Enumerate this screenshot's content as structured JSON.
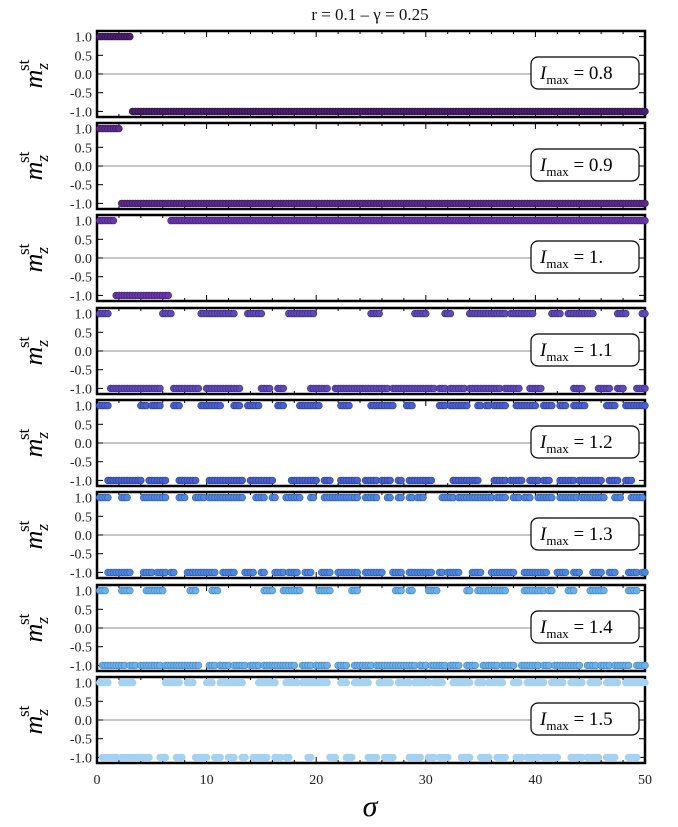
{
  "figure": {
    "title": "r = 0.1  –  γ = 0.25",
    "xlabel": "σ",
    "ylabel": "m_z^st"
  },
  "chart_data": {
    "type": "scatter",
    "title": "r = 0.1  –  γ = 0.25",
    "xlabel": "σ",
    "ylabel": "m_z^st",
    "xlim": [
      0,
      50
    ],
    "ylim": [
      -1.15,
      1.15
    ],
    "xticks": [
      "0",
      "10",
      "20",
      "30",
      "40",
      "50"
    ],
    "yticks": [
      "1.0",
      "0.5",
      "0.0",
      "-0.5",
      "-1.0"
    ],
    "legend_placement": "right",
    "grid": false,
    "x_step": 0.25,
    "panels": [
      {
        "label": "I_max = 0.8",
        "label_base": "I",
        "label_sub": "max",
        "label_value": " = 0.8",
        "color": "#4a1f6e",
        "stroke": "#2d1045",
        "segments_plus": [
          [
            0.25,
            3.0
          ]
        ],
        "segments_minus": [
          [
            3.25,
            50.0
          ]
        ]
      },
      {
        "label": "I_max = 0.9",
        "label_base": "I",
        "label_sub": "max",
        "label_value": " = 0.9",
        "color": "#5b2a8a",
        "stroke": "#3a1860",
        "segments_plus": [
          [
            0.25,
            2.0
          ]
        ],
        "segments_minus": [
          [
            2.25,
            50.0
          ]
        ]
      },
      {
        "label": "I_max = 1.",
        "label_base": "I",
        "label_sub": "max",
        "label_value": " = 1.",
        "color": "#6a35a8",
        "stroke": "#45207a",
        "segments_plus": [
          [
            0.25,
            1.5
          ],
          [
            6.75,
            50.0
          ]
        ],
        "segments_minus": [
          [
            1.75,
            6.5
          ]
        ]
      },
      {
        "label": "I_max = 1.1",
        "label_base": "I",
        "label_sub": "max",
        "label_value": " = 1.1",
        "color": "#6048b8",
        "stroke": "#3b2c85",
        "segments_plus": [
          [
            0.25,
            1.0
          ],
          [
            6.0,
            6.75
          ],
          [
            9.5,
            12.5
          ],
          [
            13.75,
            15.0
          ],
          [
            17.5,
            19.75
          ],
          [
            25.0,
            25.75
          ],
          [
            29.0,
            30.0
          ],
          [
            31.75,
            32.25
          ],
          [
            34.0,
            37.25
          ],
          [
            37.75,
            39.75
          ],
          [
            41.5,
            42.25
          ],
          [
            43.0,
            45.25
          ],
          [
            47.5,
            48.25
          ],
          [
            49.75,
            50.0
          ]
        ],
        "segments_minus": [
          [
            1.25,
            5.75
          ],
          [
            7.0,
            9.25
          ],
          [
            10.0,
            13.0
          ],
          [
            15.0,
            15.75
          ],
          [
            16.5,
            17.0
          ],
          [
            19.5,
            21.0
          ],
          [
            21.75,
            26.5
          ],
          [
            27.0,
            30.75
          ],
          [
            31.25,
            31.75
          ],
          [
            32.25,
            33.5
          ],
          [
            34.0,
            36.75
          ],
          [
            37.25,
            38.5
          ],
          [
            39.5,
            40.5
          ],
          [
            43.5,
            44.25
          ],
          [
            45.75,
            46.75
          ],
          [
            47.5,
            48.0
          ],
          [
            49.25,
            50.0
          ]
        ]
      },
      {
        "label": "I_max = 1.2",
        "label_base": "I",
        "label_sub": "max",
        "label_value": " = 1.2",
        "color": "#4a5fcf",
        "stroke": "#2d3f96",
        "segments_plus": [
          [
            0.25,
            1.0
          ],
          [
            4.0,
            4.5
          ],
          [
            5.0,
            5.75
          ],
          [
            7.0,
            7.5
          ],
          [
            9.5,
            11.25
          ],
          [
            12.5,
            13.0
          ],
          [
            13.75,
            14.75
          ],
          [
            16.5,
            17.0
          ],
          [
            18.5,
            20.25
          ],
          [
            22.25,
            23.0
          ],
          [
            25.0,
            27.0
          ],
          [
            28.25,
            28.75
          ],
          [
            31.25,
            31.75
          ],
          [
            32.25,
            33.75
          ],
          [
            34.75,
            35.0
          ],
          [
            35.5,
            35.75
          ],
          [
            36.25,
            37.25
          ],
          [
            38.25,
            40.0
          ],
          [
            40.75,
            41.5
          ],
          [
            42.25,
            42.75
          ],
          [
            43.5,
            44.5
          ],
          [
            46.5,
            47.25
          ],
          [
            48.25,
            50.0
          ]
        ],
        "segments_minus": [
          [
            1.0,
            4.0
          ],
          [
            4.75,
            6.25
          ],
          [
            7.5,
            9.0
          ],
          [
            10.25,
            13.25
          ],
          [
            14.0,
            16.0
          ],
          [
            17.75,
            20.0
          ],
          [
            20.75,
            21.25
          ],
          [
            22.25,
            23.75
          ],
          [
            24.5,
            25.5
          ],
          [
            26.0,
            26.75
          ],
          [
            27.5,
            27.75
          ],
          [
            28.5,
            30.5
          ],
          [
            32.5,
            34.75
          ],
          [
            36.25,
            37.25
          ],
          [
            37.75,
            38.75
          ],
          [
            39.5,
            40.25
          ],
          [
            40.75,
            41.25
          ],
          [
            42.25,
            43.5
          ],
          [
            44.0,
            46.0
          ],
          [
            46.75,
            47.5
          ],
          [
            48.25,
            48.75
          ]
        ]
      },
      {
        "label": "I_max = 1.3",
        "label_base": "I",
        "label_sub": "max",
        "label_value": " = 1.3",
        "color": "#4f86e0",
        "stroke": "#2e5ba8",
        "segments_plus": [
          [
            0.25,
            1.0
          ],
          [
            2.25,
            2.75
          ],
          [
            4.25,
            6.25
          ],
          [
            7.5,
            8.0
          ],
          [
            9.0,
            9.75
          ],
          [
            10.25,
            13.25
          ],
          [
            14.5,
            15.25
          ],
          [
            16.0,
            16.25
          ],
          [
            17.25,
            18.5
          ],
          [
            19.5,
            19.75
          ],
          [
            20.75,
            23.75
          ],
          [
            24.5,
            25.5
          ],
          [
            26.5,
            26.75
          ],
          [
            27.5,
            27.75
          ],
          [
            28.5,
            28.75
          ],
          [
            29.25,
            29.75
          ],
          [
            31.5,
            32.5
          ],
          [
            33.0,
            36.0
          ],
          [
            36.5,
            37.25
          ],
          [
            38.0,
            38.5
          ],
          [
            39.0,
            39.5
          ],
          [
            40.25,
            41.5
          ],
          [
            42.25,
            43.75
          ],
          [
            44.25,
            46.25
          ],
          [
            47.25,
            47.75
          ],
          [
            48.75,
            49.75
          ]
        ],
        "segments_minus": [
          [
            1.0,
            3.0
          ],
          [
            4.25,
            5.0
          ],
          [
            5.5,
            6.25
          ],
          [
            6.75,
            7.0
          ],
          [
            8.25,
            10.75
          ],
          [
            11.5,
            12.5
          ],
          [
            13.5,
            14.25
          ],
          [
            15.0,
            15.25
          ],
          [
            16.25,
            17.0
          ],
          [
            17.5,
            18.25
          ],
          [
            19.0,
            19.5
          ],
          [
            20.5,
            21.25
          ],
          [
            22.0,
            23.75
          ],
          [
            24.5,
            26.0
          ],
          [
            27.0,
            27.75
          ],
          [
            28.5,
            30.5
          ],
          [
            31.25,
            31.5
          ],
          [
            32.0,
            33.0
          ],
          [
            34.25,
            35.0
          ],
          [
            36.0,
            38.0
          ],
          [
            39.0,
            41.0
          ],
          [
            42.0,
            42.75
          ],
          [
            43.5,
            44.0
          ],
          [
            45.25,
            46.0
          ],
          [
            46.75,
            47.25
          ],
          [
            48.5,
            49.25
          ],
          [
            49.75,
            50.0
          ]
        ]
      },
      {
        "label": "I_max = 1.4",
        "label_base": "I",
        "label_sub": "max",
        "label_value": " = 1.4",
        "color": "#6bb0ea",
        "stroke": "#3f86c4",
        "segments_plus": [
          [
            0.25,
            0.75
          ],
          [
            2.25,
            3.0
          ],
          [
            4.5,
            6.0
          ],
          [
            8.5,
            9.0
          ],
          [
            10.5,
            11.0
          ],
          [
            15.25,
            16.0
          ],
          [
            17.0,
            17.5
          ],
          [
            17.75,
            18.5
          ],
          [
            20.25,
            21.25
          ],
          [
            23.25,
            23.75
          ],
          [
            27.25,
            27.75
          ],
          [
            28.5,
            28.75
          ],
          [
            30.25,
            31.0
          ],
          [
            33.75,
            34.0
          ],
          [
            34.75,
            37.25
          ],
          [
            39.0,
            40.75
          ],
          [
            41.25,
            41.5
          ],
          [
            43.0,
            43.5
          ],
          [
            45.0,
            46.25
          ],
          [
            48.5,
            49.25
          ]
        ],
        "segments_minus": [
          [
            0.5,
            2.5
          ],
          [
            3.0,
            3.5
          ],
          [
            4.0,
            5.75
          ],
          [
            6.25,
            9.25
          ],
          [
            10.25,
            10.75
          ],
          [
            11.25,
            12.0
          ],
          [
            12.5,
            13.5
          ],
          [
            14.0,
            14.75
          ],
          [
            15.25,
            16.5
          ],
          [
            16.75,
            18.0
          ],
          [
            18.75,
            19.5
          ],
          [
            20.0,
            21.0
          ],
          [
            22.0,
            22.75
          ],
          [
            23.5,
            25.0
          ],
          [
            25.5,
            26.5
          ],
          [
            26.75,
            27.5
          ],
          [
            27.75,
            29.0
          ],
          [
            29.5,
            30.0
          ],
          [
            30.5,
            31.75
          ],
          [
            32.25,
            33.0
          ],
          [
            33.75,
            34.5
          ],
          [
            35.25,
            36.5
          ],
          [
            37.0,
            38.0
          ],
          [
            38.75,
            40.25
          ],
          [
            40.75,
            41.25
          ],
          [
            41.75,
            43.0
          ],
          [
            43.25,
            44.0
          ],
          [
            44.75,
            45.5
          ],
          [
            46.0,
            46.75
          ],
          [
            47.25,
            48.5
          ],
          [
            49.25,
            50.0
          ]
        ]
      },
      {
        "label": "I_max = 1.5",
        "label_base": "I",
        "label_sub": "max",
        "label_value": " = 1.5",
        "color": "#a3d2f5",
        "stroke": "#a3d2f5",
        "segments_plus": [
          [
            0.25,
            1.0
          ],
          [
            2.25,
            3.25
          ],
          [
            6.25,
            7.5
          ],
          [
            8.25,
            8.75
          ],
          [
            10.0,
            10.5
          ],
          [
            11.25,
            13.25
          ],
          [
            14.75,
            16.25
          ],
          [
            17.25,
            18.25
          ],
          [
            18.75,
            21.0
          ],
          [
            22.25,
            22.75
          ],
          [
            23.5,
            24.75
          ],
          [
            25.75,
            26.75
          ],
          [
            27.5,
            28.5
          ],
          [
            29.0,
            30.25
          ],
          [
            30.75,
            31.5
          ],
          [
            32.5,
            34.0
          ],
          [
            34.75,
            35.25
          ],
          [
            35.75,
            37.0
          ],
          [
            38.0,
            38.5
          ],
          [
            39.25,
            40.75
          ],
          [
            41.5,
            42.5
          ],
          [
            43.25,
            44.25
          ],
          [
            45.0,
            45.75
          ],
          [
            46.5,
            47.5
          ],
          [
            48.25,
            50.0
          ]
        ],
        "segments_minus": [
          [
            0.5,
            1.75
          ],
          [
            2.25,
            4.75
          ],
          [
            5.75,
            6.25
          ],
          [
            7.25,
            7.75
          ],
          [
            9.0,
            10.0
          ],
          [
            10.75,
            11.25
          ],
          [
            12.0,
            12.5
          ],
          [
            13.25,
            13.5
          ],
          [
            14.25,
            15.5
          ],
          [
            16.25,
            16.75
          ],
          [
            17.25,
            17.5
          ],
          [
            19.25,
            19.5
          ],
          [
            21.25,
            21.75
          ],
          [
            22.75,
            23.25
          ],
          [
            24.75,
            25.5
          ],
          [
            26.25,
            27.0
          ],
          [
            28.5,
            29.5
          ],
          [
            30.25,
            30.75
          ],
          [
            31.25,
            32.0
          ],
          [
            33.25,
            34.0
          ],
          [
            35.0,
            35.75
          ],
          [
            36.5,
            37.25
          ],
          [
            38.25,
            38.75
          ],
          [
            39.25,
            40.25
          ],
          [
            40.75,
            42.0
          ],
          [
            43.25,
            44.25
          ],
          [
            44.75,
            45.75
          ],
          [
            46.5,
            47.25
          ],
          [
            48.5,
            49.25
          ]
        ]
      }
    ]
  }
}
